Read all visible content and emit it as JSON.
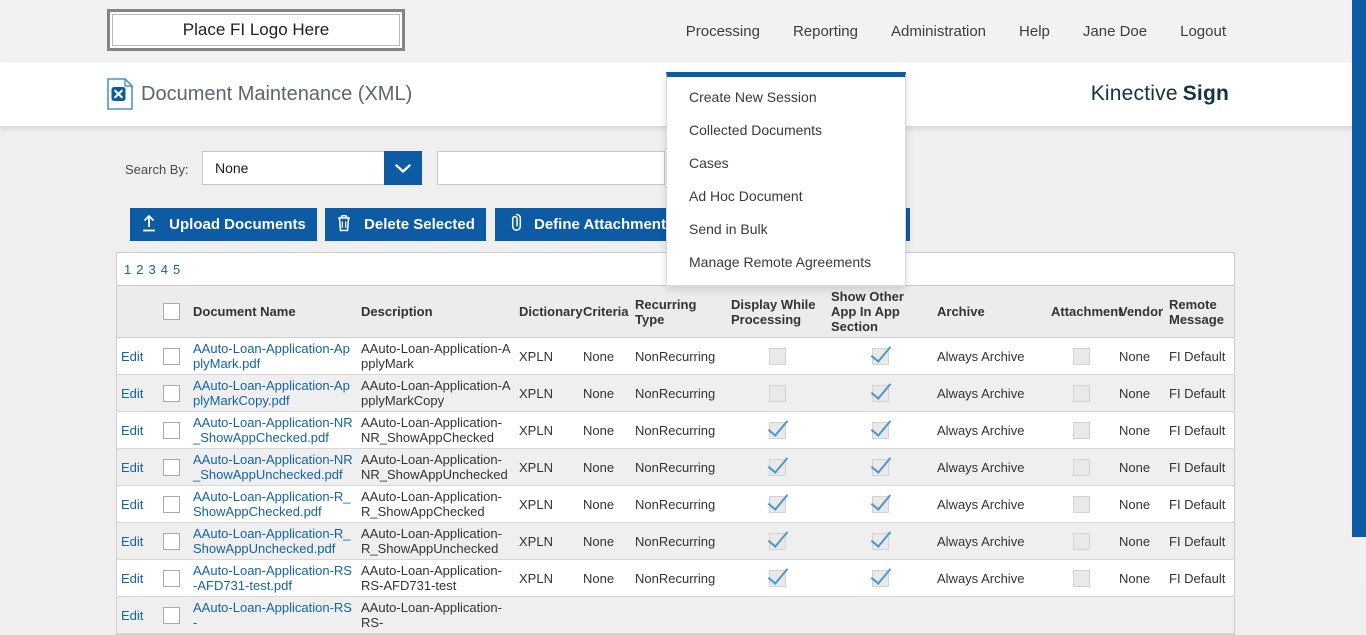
{
  "header": {
    "logo_text": "Place FI Logo Here",
    "nav": [
      "Processing",
      "Reporting",
      "Administration",
      "Help",
      "Jane Doe",
      "Logout"
    ]
  },
  "title_bar": {
    "title": "Document Maintenance (XML)",
    "brand_regular": "Kinective",
    "brand_bold": "Sign"
  },
  "menu": {
    "items": [
      "Create New Session",
      "Collected Documents",
      "Cases",
      "Ad Hoc Document",
      "Send in Bulk",
      "Manage Remote Agreements"
    ]
  },
  "search": {
    "label": "Search By:",
    "selected": "None",
    "input_value": ""
  },
  "toolbar": {
    "buttons": [
      {
        "label": "Upload Documents",
        "icon": "upload-icon"
      },
      {
        "label": "Delete Selected",
        "icon": "trash-icon"
      },
      {
        "label": "Define Attachment",
        "icon": "paperclip-icon"
      }
    ]
  },
  "pagination": {
    "pages": [
      "1",
      "2",
      "3",
      "4",
      "5"
    ]
  },
  "table": {
    "edit_label": "Edit",
    "columns": [
      "Document Name",
      "Description",
      "Dictionary",
      "Criteria",
      "Recurring Type",
      "Display While Processing",
      "Show Other App In App Section",
      "Archive",
      "Attachment",
      "Vendor",
      "Remote Message"
    ],
    "rows": [
      {
        "name": "AAuto-Loan-Application-ApplyMark.pdf",
        "description": "AAuto-Loan-Application-ApplyMark",
        "dictionary": "XPLN",
        "criteria": "None",
        "recurring_type": "NonRecurring",
        "display_while_processing": false,
        "show_other_app": true,
        "archive": "Always Archive",
        "attachment": false,
        "vendor": "None",
        "remote_message": "FI Default"
      },
      {
        "name": "AAuto-Loan-Application-ApplyMarkCopy.pdf",
        "description": "AAuto-Loan-Application-ApplyMarkCopy",
        "dictionary": "XPLN",
        "criteria": "None",
        "recurring_type": "NonRecurring",
        "display_while_processing": false,
        "show_other_app": true,
        "archive": "Always Archive",
        "attachment": false,
        "vendor": "None",
        "remote_message": "FI Default"
      },
      {
        "name": "AAuto-Loan-Application-NR_ShowAppChecked.pdf",
        "description": "AAuto-Loan-Application-NR_ShowAppChecked",
        "dictionary": "XPLN",
        "criteria": "None",
        "recurring_type": "NonRecurring",
        "display_while_processing": true,
        "show_other_app": true,
        "archive": "Always Archive",
        "attachment": false,
        "vendor": "None",
        "remote_message": "FI Default"
      },
      {
        "name": "AAuto-Loan-Application-NR_ShowAppUnchecked.pdf",
        "description": "AAuto-Loan-Application-NR_ShowAppUnchecked",
        "dictionary": "XPLN",
        "criteria": "None",
        "recurring_type": "NonRecurring",
        "display_while_processing": true,
        "show_other_app": true,
        "archive": "Always Archive",
        "attachment": false,
        "vendor": "None",
        "remote_message": "FI Default"
      },
      {
        "name": "AAuto-Loan-Application-R_ShowAppChecked.pdf",
        "description": "AAuto-Loan-Application-R_ShowAppChecked",
        "dictionary": "XPLN",
        "criteria": "None",
        "recurring_type": "NonRecurring",
        "display_while_processing": true,
        "show_other_app": true,
        "archive": "Always Archive",
        "attachment": false,
        "vendor": "None",
        "remote_message": "FI Default"
      },
      {
        "name": "AAuto-Loan-Application-R_ShowAppUnchecked.pdf",
        "description": "AAuto-Loan-Application-R_ShowAppUnchecked",
        "dictionary": "XPLN",
        "criteria": "None",
        "recurring_type": "NonRecurring",
        "display_while_processing": true,
        "show_other_app": true,
        "archive": "Always Archive",
        "attachment": false,
        "vendor": "None",
        "remote_message": "FI Default"
      },
      {
        "name": "AAuto-Loan-Application-RS-AFD731-test.pdf",
        "description": "AAuto-Loan-Application-RS-AFD731-test",
        "dictionary": "XPLN",
        "criteria": "None",
        "recurring_type": "NonRecurring",
        "display_while_processing": true,
        "show_other_app": true,
        "archive": "Always Archive",
        "attachment": false,
        "vendor": "None",
        "remote_message": "FI Default"
      },
      {
        "name": "AAuto-Loan-Application-RS-",
        "description": "AAuto-Loan-Application-RS-",
        "dictionary": "",
        "criteria": "",
        "recurring_type": "",
        "display_while_processing": false,
        "show_other_app": false,
        "archive": "",
        "attachment": false,
        "vendor": "",
        "remote_message": "",
        "partial": true
      }
    ]
  },
  "colors": {
    "accent_blue": "#0d5ba5",
    "link_blue": "#1464a5",
    "check_blue": "#4e97cb",
    "brand_dark": "#15323f",
    "header_band": "#f2f2f2",
    "page_bg": "#efefef"
  }
}
